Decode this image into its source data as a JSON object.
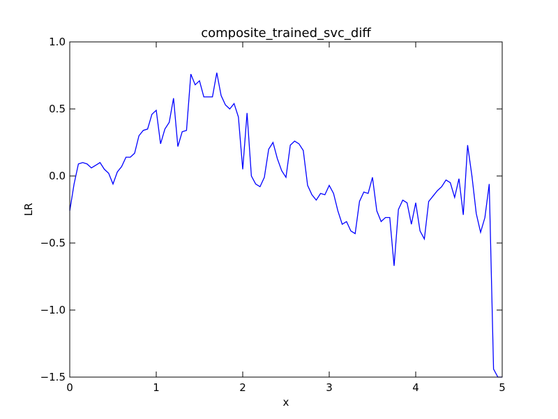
{
  "chart_data": {
    "type": "line",
    "title": "composite_trained_svc_diff",
    "xlabel": "x",
    "ylabel": "LR",
    "xlim": [
      0,
      5
    ],
    "ylim": [
      -1.5,
      1.0
    ],
    "xticks": [
      0,
      1,
      2,
      3,
      4,
      5
    ],
    "xtick_labels": [
      "0",
      "1",
      "2",
      "3",
      "4",
      "5"
    ],
    "yticks": [
      1.0,
      0.5,
      0.0,
      -0.5,
      -1.0,
      -1.5
    ],
    "ytick_labels": [
      "1.0",
      "0.5",
      "0.0",
      "−0.5",
      "−1.0",
      "−1.5"
    ],
    "grid": false,
    "series": [
      {
        "color": "#0000ff",
        "x": [
          0.0,
          0.05,
          0.1,
          0.15,
          0.2,
          0.25,
          0.3,
          0.35,
          0.4,
          0.45,
          0.5,
          0.55,
          0.6,
          0.65,
          0.7,
          0.75,
          0.8,
          0.85,
          0.9,
          0.95,
          1.0,
          1.05,
          1.1,
          1.15,
          1.2,
          1.25,
          1.3,
          1.35,
          1.4,
          1.45,
          1.5,
          1.55,
          1.6,
          1.65,
          1.7,
          1.75,
          1.8,
          1.85,
          1.9,
          1.95,
          2.0,
          2.05,
          2.1,
          2.15,
          2.2,
          2.25,
          2.3,
          2.35,
          2.4,
          2.45,
          2.5,
          2.55,
          2.6,
          2.65,
          2.7,
          2.75,
          2.8,
          2.85,
          2.9,
          2.95,
          3.0,
          3.05,
          3.1,
          3.15,
          3.2,
          3.25,
          3.3,
          3.35,
          3.4,
          3.45,
          3.5,
          3.55,
          3.6,
          3.65,
          3.7,
          3.75,
          3.8,
          3.85,
          3.9,
          3.95,
          4.0,
          4.05,
          4.1,
          4.15,
          4.2,
          4.25,
          4.3,
          4.35,
          4.4,
          4.45,
          4.5,
          4.55,
          4.6,
          4.65,
          4.7,
          4.75,
          4.8,
          4.85,
          4.9,
          4.95,
          5.0
        ],
        "y": [
          -0.26,
          -0.06,
          0.09,
          0.1,
          0.09,
          0.06,
          0.08,
          0.1,
          0.05,
          0.02,
          -0.06,
          0.03,
          0.07,
          0.14,
          0.14,
          0.17,
          0.3,
          0.34,
          0.35,
          0.46,
          0.49,
          0.24,
          0.35,
          0.4,
          0.58,
          0.22,
          0.33,
          0.34,
          0.76,
          0.68,
          0.71,
          0.59,
          0.59,
          0.59,
          0.77,
          0.6,
          0.53,
          0.5,
          0.54,
          0.44,
          0.05,
          0.47,
          0.0,
          -0.06,
          -0.08,
          -0.01,
          0.2,
          0.25,
          0.13,
          0.04,
          -0.01,
          0.23,
          0.26,
          0.24,
          0.19,
          -0.07,
          -0.14,
          -0.18,
          -0.13,
          -0.14,
          -0.07,
          -0.13,
          -0.26,
          -0.36,
          -0.34,
          -0.41,
          -0.43,
          -0.19,
          -0.12,
          -0.13,
          -0.01,
          -0.26,
          -0.34,
          -0.31,
          -0.31,
          -0.67,
          -0.25,
          -0.18,
          -0.2,
          -0.36,
          -0.2,
          -0.41,
          -0.47,
          -0.19,
          -0.15,
          -0.11,
          -0.08,
          -0.03,
          -0.05,
          -0.16,
          -0.02,
          -0.29,
          0.23,
          0.0,
          -0.28,
          -0.42,
          -0.31,
          -0.06,
          -1.44,
          -1.5,
          -1.5
        ]
      }
    ]
  }
}
